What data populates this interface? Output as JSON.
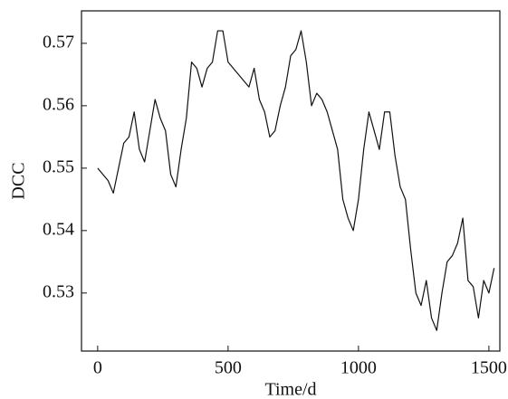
{
  "chart_data": {
    "type": "line",
    "x_label": "Time/d",
    "y_label": "DCC",
    "x": [
      0,
      20,
      40,
      60,
      80,
      100,
      120,
      140,
      160,
      180,
      200,
      220,
      240,
      260,
      280,
      300,
      320,
      340,
      360,
      380,
      400,
      420,
      440,
      460,
      480,
      500,
      520,
      540,
      560,
      580,
      600,
      620,
      640,
      660,
      680,
      700,
      720,
      740,
      760,
      780,
      800,
      820,
      840,
      860,
      880,
      900,
      920,
      940,
      960,
      980,
      1000,
      1020,
      1040,
      1060,
      1080,
      1100,
      1120,
      1140,
      1160,
      1180,
      1200,
      1220,
      1240,
      1260,
      1280,
      1300,
      1320,
      1340,
      1360,
      1380,
      1400,
      1420,
      1440,
      1460,
      1480,
      1500,
      1520
    ],
    "series": [
      {
        "color": "#111111",
        "values": [
          0.55,
          0.549,
          0.548,
          0.546,
          0.55,
          0.554,
          0.555,
          0.559,
          0.553,
          0.551,
          0.556,
          0.561,
          0.558,
          0.556,
          0.549,
          0.547,
          0.553,
          0.558,
          0.567,
          0.566,
          0.563,
          0.566,
          0.567,
          0.572,
          0.572,
          0.567,
          0.566,
          0.565,
          0.564,
          0.563,
          0.566,
          0.561,
          0.559,
          0.555,
          0.556,
          0.56,
          0.563,
          0.568,
          0.569,
          0.572,
          0.567,
          0.56,
          0.562,
          0.561,
          0.559,
          0.556,
          0.553,
          0.545,
          0.542,
          0.54,
          0.545,
          0.553,
          0.559,
          0.556,
          0.553,
          0.559,
          0.559,
          0.552,
          0.547,
          0.545,
          0.537,
          0.53,
          0.528,
          0.532,
          0.526,
          0.524,
          0.53,
          0.535,
          0.536,
          0.538,
          0.542,
          0.532,
          0.531,
          0.526,
          0.532,
          0.53,
          0.534
        ]
      }
    ],
    "xlim": [
      -62,
      1542
    ],
    "xticks": [
      0,
      500,
      1000,
      1500
    ],
    "ylim": [
      0.5207,
      0.5752
    ],
    "yticks": [
      {
        "value": 0.53,
        "label": "0.53"
      },
      {
        "value": 0.54,
        "label": "0.54"
      },
      {
        "value": 0.55,
        "label": "0.55"
      },
      {
        "value": 0.56,
        "label": "0.56"
      },
      {
        "value": 0.57,
        "label": "0.57"
      }
    ],
    "grid": false
  }
}
